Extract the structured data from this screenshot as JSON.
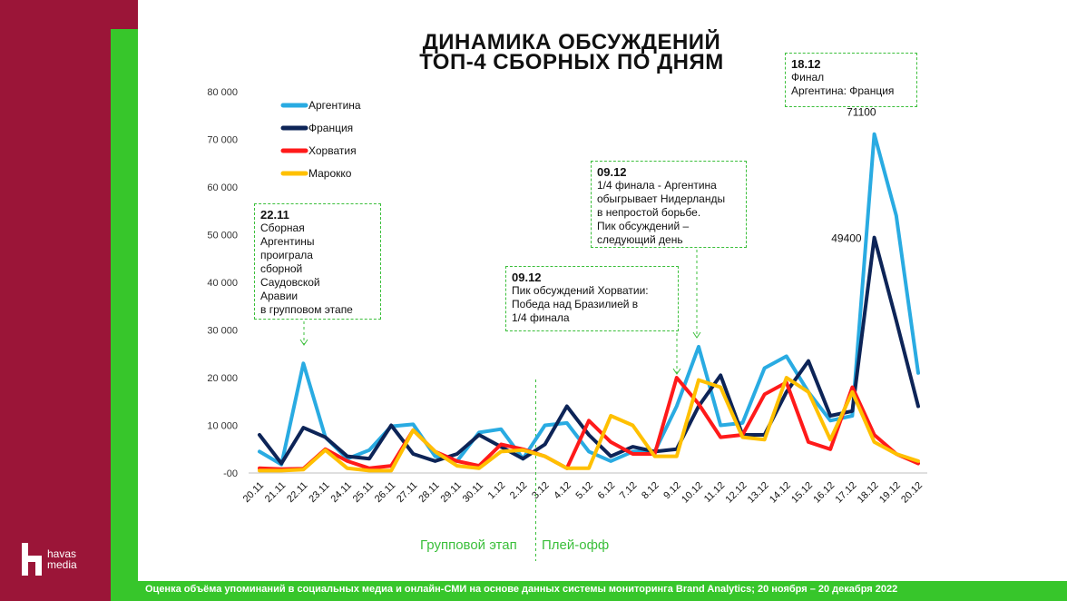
{
  "title": {
    "line1": "ДИНАМИКА ОБСУЖДЕНИЙ",
    "line2": "ТОП-4 СБОРНЫХ ПО ДНЯМ"
  },
  "footer": "Оценка объёма упоминаний в социальных медиа и онлайн-СМИ на основе данных системы мониторинга Brand Analytics;  20 ноября – 20 декабря 2022",
  "logo": {
    "line1": "havas",
    "line2": "media"
  },
  "colors": {
    "argentina": "#29abe2",
    "france": "#0d2457",
    "croatia": "#ff1a1a",
    "morocco": "#ffc000",
    "accent_green": "#37c62b",
    "brand_red": "#9b1538"
  },
  "phases": {
    "group": "Групповой этап",
    "playoff": "Плей-офф"
  },
  "annotations": {
    "a1": {
      "date": "22.11",
      "lines": [
        "Сборная",
        "Аргентины",
        "проиграла",
        "сборной",
        "Саудовской",
        "Аравии",
        "в групповом этапе"
      ]
    },
    "a2": {
      "date": "09.12",
      "lines": [
        "Пик обсуждений Хорватии:",
        "Победа над Бразилией в",
        "1/4 финала"
      ]
    },
    "a3": {
      "date": "09.12",
      "lines": [
        "1/4 финала -  Аргентина",
        "обыгрывает Нидерланды",
        "в непростой борьбе.",
        "Пик обсуждений –",
        "следующий день"
      ]
    },
    "a4": {
      "date": "18.12",
      "lines": [
        "Финал",
        "Аргентина: Франция"
      ]
    }
  },
  "chart_data": {
    "type": "line",
    "title": "ДИНАМИКА ОБСУЖДЕНИЙ ТОП-4 СБОРНЫХ ПО ДНЯМ",
    "categories": [
      "20.11",
      "21.11",
      "22.11",
      "23.11",
      "24.11",
      "25.11",
      "26.11",
      "27.11",
      "28.11",
      "29.11",
      "30.11",
      "1.12",
      "2.12",
      "3.12",
      "4.12",
      "5.12",
      "6.12",
      "7.12",
      "8.12",
      "9.12",
      "10.12",
      "11.12",
      "12.12",
      "13.12",
      "14.12",
      "15.12",
      "16.12",
      "17.12",
      "18.12",
      "19.12",
      "20.12"
    ],
    "y_tick_labels": [
      "-00",
      "10 000",
      "20 000",
      "30 000",
      "40 000",
      "50 000",
      "60 000",
      "70 000",
      "80 000"
    ],
    "ylim": [
      0,
      80000
    ],
    "legend_position": "top-left",
    "series": [
      {
        "name": "Аргентина",
        "color": "#29abe2",
        "values": [
          4500,
          1800,
          23000,
          7500,
          3000,
          4800,
          9800,
          10200,
          3500,
          2500,
          8500,
          9200,
          3000,
          10000,
          10500,
          4500,
          2500,
          4500,
          4500,
          14000,
          26500,
          10000,
          10500,
          22000,
          24500,
          17000,
          11000,
          12000,
          71100,
          54000,
          21000
        ]
      },
      {
        "name": "Франция",
        "color": "#0d2457",
        "values": [
          8000,
          2000,
          9500,
          7500,
          3500,
          3000,
          10000,
          4000,
          2500,
          4000,
          8000,
          5500,
          3000,
          6000,
          14000,
          8000,
          3500,
          5500,
          4500,
          5000,
          14000,
          20500,
          8000,
          8000,
          17000,
          23500,
          12000,
          13000,
          49400,
          32000,
          14000
        ]
      },
      {
        "name": "Хорватия",
        "color": "#ff1a1a",
        "values": [
          1000,
          800,
          900,
          5000,
          2500,
          1000,
          1500,
          9000,
          4500,
          2500,
          1500,
          6000,
          5000,
          3500,
          1000,
          11000,
          6500,
          4000,
          4000,
          20000,
          14500,
          7500,
          8000,
          16500,
          19000,
          6500,
          5000,
          18000,
          8000,
          4000,
          2000
        ]
      },
      {
        "name": "Марокко",
        "color": "#ffc000",
        "values": [
          500,
          500,
          700,
          4800,
          1000,
          500,
          500,
          9000,
          4500,
          1500,
          1000,
          4500,
          4800,
          3500,
          1000,
          1000,
          12000,
          10000,
          3500,
          3500,
          19500,
          18000,
          7500,
          7000,
          20000,
          17000,
          7000,
          17000,
          6500,
          4000,
          2500
        ]
      }
    ],
    "data_labels": [
      {
        "series": "Аргентина",
        "x": "18.12",
        "text": "71100"
      },
      {
        "series": "Франция",
        "x": "18.12",
        "text": "49400"
      }
    ]
  }
}
